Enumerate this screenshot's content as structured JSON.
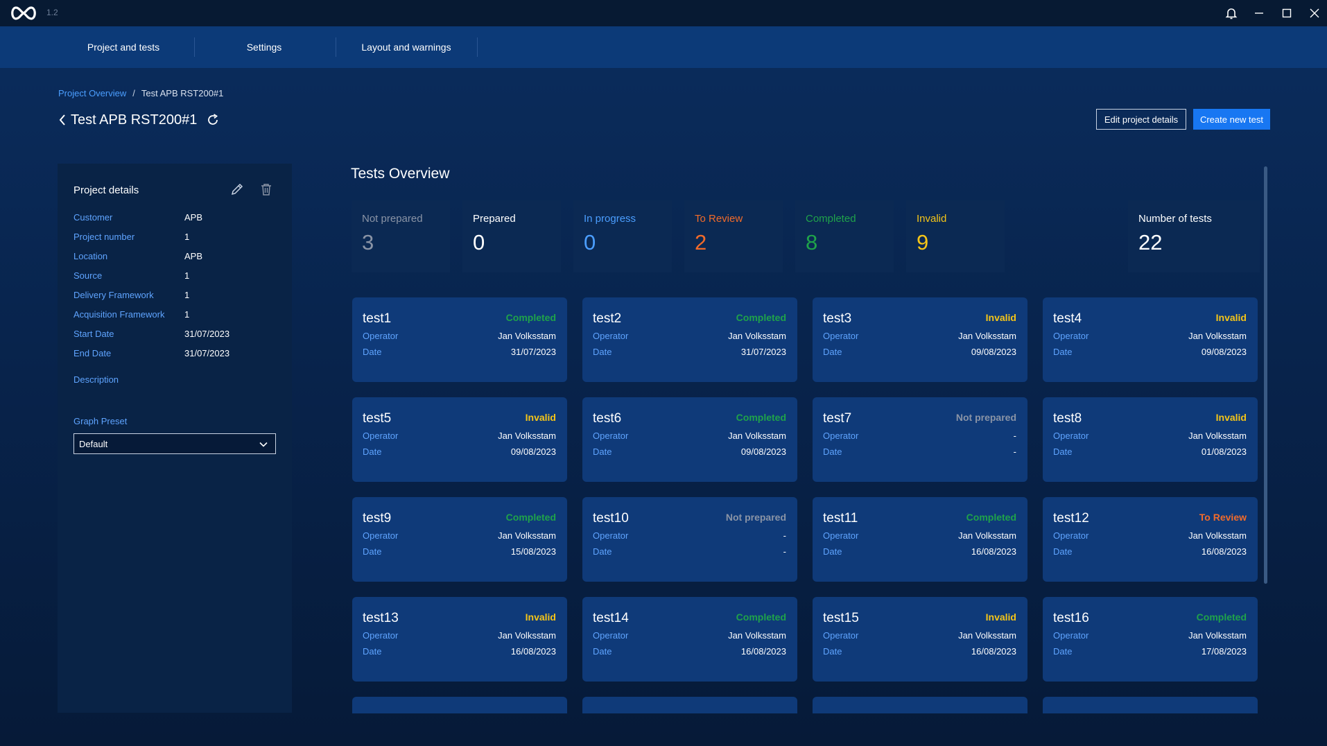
{
  "app": {
    "version": "1.2"
  },
  "nav": {
    "tabs": [
      "Project and tests",
      "Settings",
      "Layout and warnings"
    ]
  },
  "breadcrumb": {
    "parent": "Project Overview",
    "separator": "/",
    "current": "Test APB RST200#1"
  },
  "header": {
    "title": "Test APB RST200#1",
    "edit_label": "Edit project details",
    "create_label": "Create new test"
  },
  "project": {
    "title": "Project details",
    "details": [
      {
        "label": "Customer",
        "value": "APB"
      },
      {
        "label": "Project number",
        "value": "1"
      },
      {
        "label": "Location",
        "value": "APB"
      },
      {
        "label": "Source",
        "value": "1"
      },
      {
        "label": "Delivery Framework",
        "value": "1"
      },
      {
        "label": "Acquisition Framework",
        "value": "1"
      },
      {
        "label": "Start Date",
        "value": "31/07/2023"
      },
      {
        "label": "End Date",
        "value": "31/07/2023"
      }
    ],
    "description_label": "Description",
    "graph_preset_label": "Graph Preset",
    "graph_preset_value": "Default"
  },
  "overview": {
    "title": "Tests Overview",
    "stats": [
      {
        "label": "Not prepared",
        "value": "3",
        "color": "#8a94a6"
      },
      {
        "label": "Prepared",
        "value": "0",
        "color": "#ffffff"
      },
      {
        "label": "In progress",
        "value": "0",
        "color": "#4b9eff"
      },
      {
        "label": "To Review",
        "value": "2",
        "color": "#f26b2a"
      },
      {
        "label": "Completed",
        "value": "8",
        "color": "#1fa34a"
      },
      {
        "label": "Invalid",
        "value": "9",
        "color": "#f5c518"
      }
    ],
    "total": {
      "label": "Number of tests",
      "value": "22"
    }
  },
  "card_labels": {
    "operator": "Operator",
    "date": "Date"
  },
  "status_colors": {
    "Completed": "#1fa34a",
    "Invalid": "#f5c518",
    "Not prepared": "#8a94a6",
    "To Review": "#f26b2a"
  },
  "tests": [
    {
      "name": "test1",
      "status": "Completed",
      "operator": "Jan Volksstam",
      "date": "31/07/2023"
    },
    {
      "name": "test2",
      "status": "Completed",
      "operator": "Jan Volksstam",
      "date": "31/07/2023"
    },
    {
      "name": "test3",
      "status": "Invalid",
      "operator": "Jan Volksstam",
      "date": "09/08/2023"
    },
    {
      "name": "test4",
      "status": "Invalid",
      "operator": "Jan Volksstam",
      "date": "09/08/2023"
    },
    {
      "name": "test5",
      "status": "Invalid",
      "operator": "Jan Volksstam",
      "date": "09/08/2023"
    },
    {
      "name": "test6",
      "status": "Completed",
      "operator": "Jan Volksstam",
      "date": "09/08/2023"
    },
    {
      "name": "test7",
      "status": "Not prepared",
      "operator": "-",
      "date": "-"
    },
    {
      "name": "test8",
      "status": "Invalid",
      "operator": "Jan Volksstam",
      "date": "01/08/2023"
    },
    {
      "name": "test9",
      "status": "Completed",
      "operator": "Jan Volksstam",
      "date": "15/08/2023"
    },
    {
      "name": "test10",
      "status": "Not prepared",
      "operator": "-",
      "date": "-"
    },
    {
      "name": "test11",
      "status": "Completed",
      "operator": "Jan Volksstam",
      "date": "16/08/2023"
    },
    {
      "name": "test12",
      "status": "To Review",
      "operator": "Jan Volksstam",
      "date": "16/08/2023"
    },
    {
      "name": "test13",
      "status": "Invalid",
      "operator": "Jan Volksstam",
      "date": "16/08/2023"
    },
    {
      "name": "test14",
      "status": "Completed",
      "operator": "Jan Volksstam",
      "date": "16/08/2023"
    },
    {
      "name": "test15",
      "status": "Invalid",
      "operator": "Jan Volksstam",
      "date": "16/08/2023"
    },
    {
      "name": "test16",
      "status": "Completed",
      "operator": "Jan Volksstam",
      "date": "17/08/2023"
    }
  ]
}
